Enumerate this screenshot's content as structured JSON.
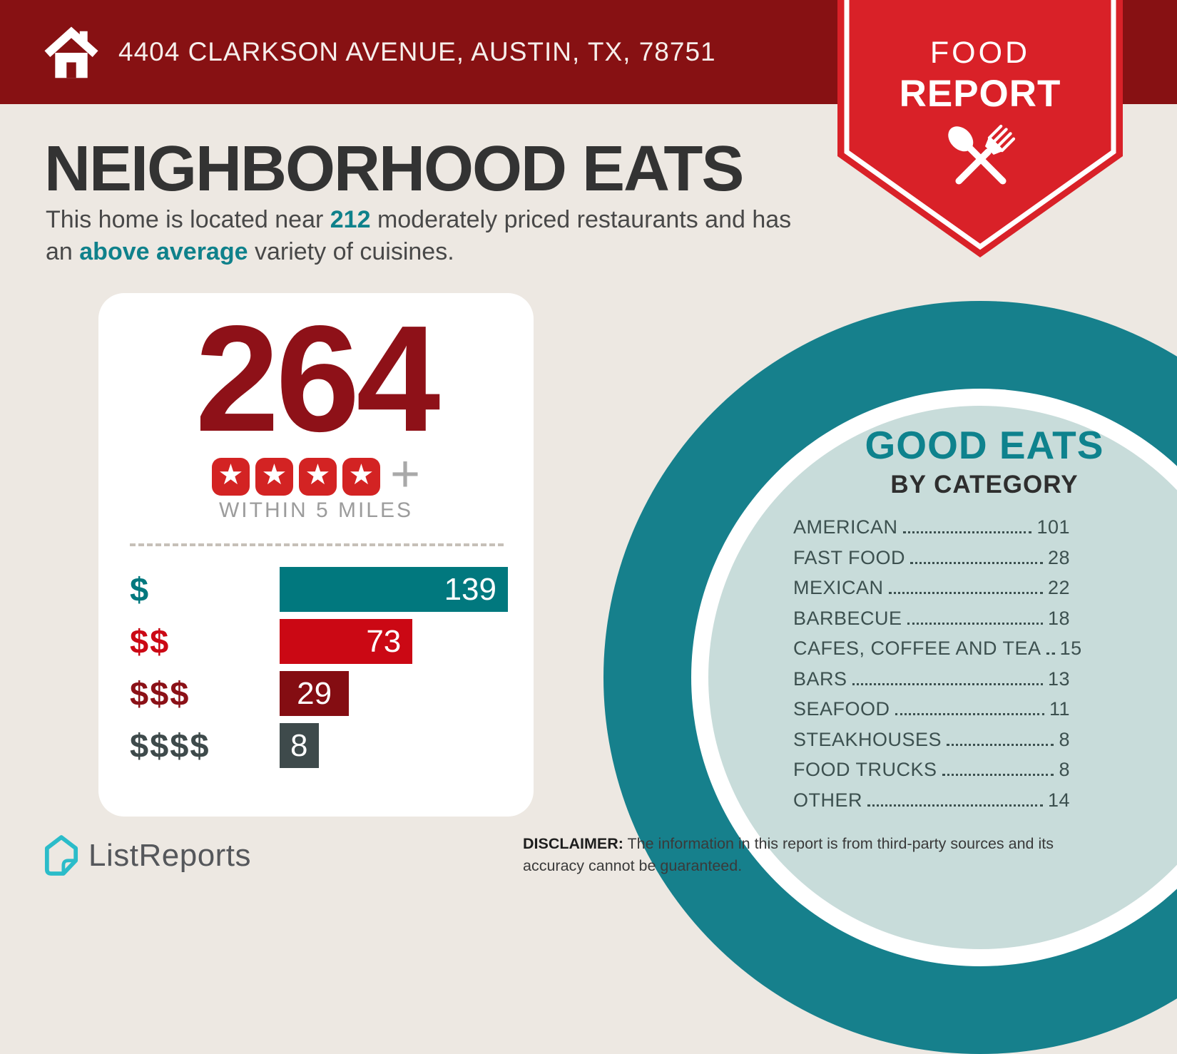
{
  "palette": {
    "background": "#EDE8E2",
    "header_maroon": "#871113",
    "ribbon_red": "#D92128",
    "star_red": "#D32323",
    "big_number_red": "#8E1118",
    "circle_teal": "#16808C",
    "circle_pale": "#C8DCDA",
    "accent_teal": "#0F818B",
    "list_text": "#3C504F",
    "muted_gray": "#9C9C9C"
  },
  "header": {
    "address": "4404 CLARKSON AVENUE, AUSTIN, TX, 78751"
  },
  "badge": {
    "line1": "FOOD",
    "line2": "REPORT"
  },
  "intro": {
    "title": "NEIGHBORHOOD EATS",
    "text_before": "This home is located near ",
    "count": "212",
    "text_middle": " moderately priced restaurants and has an ",
    "highlight": "above average",
    "text_after": " variety of cuisines."
  },
  "summary_card": {
    "total": "264",
    "stars": 4,
    "plus": "+",
    "radius_label": "WITHIN 5 MILES"
  },
  "chart_data": [
    {
      "type": "bar",
      "orientation": "horizontal",
      "context": "264 restaurants within 5 miles by price tier",
      "categories": [
        "$",
        "$$",
        "$$$",
        "$$$$"
      ],
      "values": [
        139,
        73,
        29,
        8
      ],
      "bar_colors": [
        "#01787E",
        "#CB0814",
        "#840D12",
        "#3E4A4B"
      ],
      "label_colors": [
        "#01787E",
        "#CB0814",
        "#8B1117",
        "#3E4A4B"
      ],
      "value_labels": "inside bars, white",
      "xlim": [
        0,
        139
      ],
      "grid": false,
      "legend": false
    },
    {
      "type": "table",
      "title": "GOOD EATS",
      "subtitle": "BY CATEGORY",
      "rows": [
        [
          "AMERICAN",
          101
        ],
        [
          "FAST FOOD",
          28
        ],
        [
          "MEXICAN",
          22
        ],
        [
          "BARBECUE",
          18
        ],
        [
          "CAFES, COFFEE AND TEA",
          15
        ],
        [
          "BARS",
          13
        ],
        [
          "SEAFOOD",
          11
        ],
        [
          "STEAKHOUSES",
          8
        ],
        [
          "FOOD TRUCKS",
          8
        ],
        [
          "OTHER",
          14
        ]
      ]
    }
  ],
  "good_eats": {
    "title": "GOOD EATS",
    "subtitle": "BY CATEGORY",
    "items": [
      {
        "label": "AMERICAN",
        "value": "101"
      },
      {
        "label": "FAST FOOD",
        "value": "28"
      },
      {
        "label": "MEXICAN",
        "value": "22"
      },
      {
        "label": "BARBECUE",
        "value": "18"
      },
      {
        "label": "CAFES, COFFEE AND TEA",
        "value": "15"
      },
      {
        "label": "BARS",
        "value": "13"
      },
      {
        "label": "SEAFOOD",
        "value": "11"
      },
      {
        "label": "STEAKHOUSES",
        "value": "8"
      },
      {
        "label": "FOOD TRUCKS",
        "value": "8"
      },
      {
        "label": "OTHER",
        "value": "14"
      }
    ]
  },
  "footer": {
    "brand": "ListReports",
    "disclaimer_label": "DISCLAIMER:",
    "disclaimer_text": " The information in this report is from third-party sources and its accuracy cannot be guaranteed."
  }
}
